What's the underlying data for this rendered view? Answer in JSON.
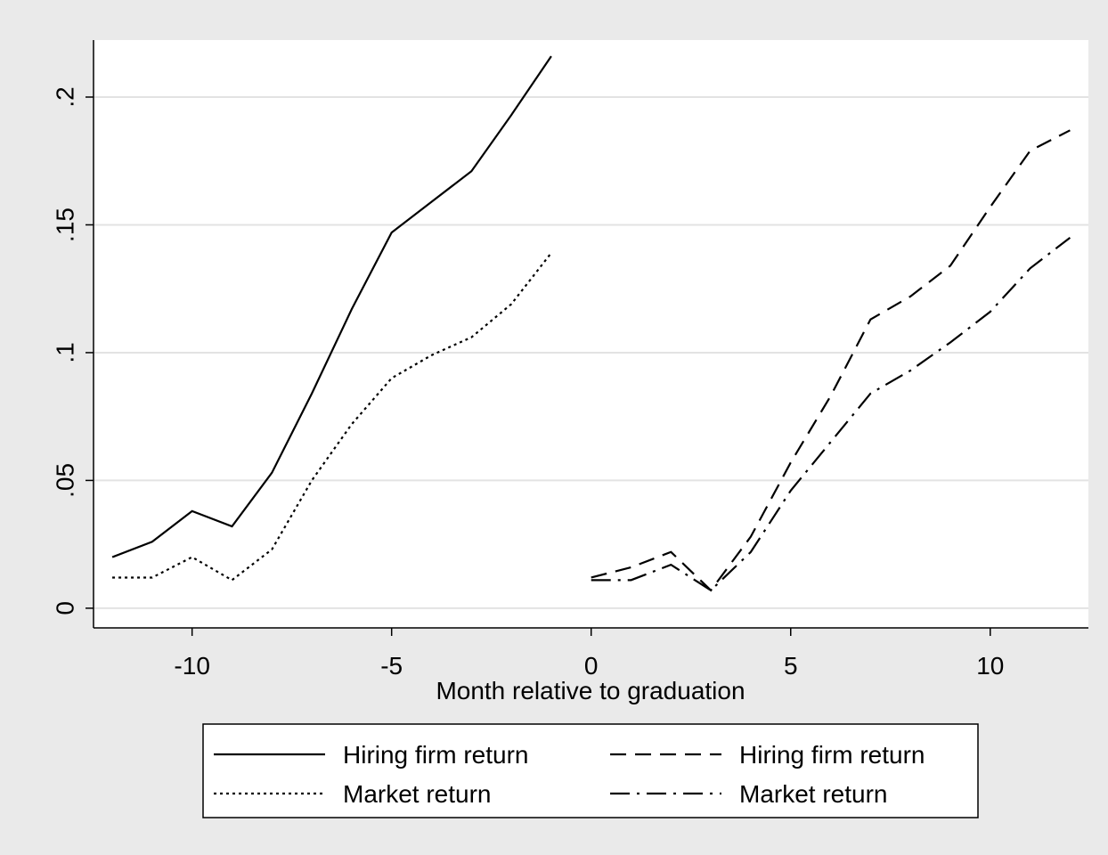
{
  "chart_data": {
    "type": "line",
    "xlabel": "Month relative to graduation",
    "xlim": [
      -12.47,
      12.46
    ],
    "ylim": [
      -0.0077,
      0.2223
    ],
    "xticks": [
      -10,
      -5,
      0,
      5,
      10
    ],
    "yticks": [
      0,
      {
        "value": 0.05,
        "label": ".05"
      },
      {
        "value": 0.1,
        "label": ".1"
      },
      {
        "value": 0.15,
        "label": ".15"
      },
      {
        "value": 0.2,
        "label": ".2"
      }
    ],
    "grid": true,
    "series": [
      {
        "name": "Hiring firm return",
        "color": "#000000",
        "dash": "solid",
        "x": [
          -12,
          -11,
          -10,
          -9,
          -8,
          -7,
          -6,
          -5,
          -4,
          -3,
          -2,
          -1
        ],
        "values": [
          0.02,
          0.026,
          0.038,
          0.032,
          0.053,
          0.084,
          0.117,
          0.147,
          0.159,
          0.171,
          0.193,
          0.216
        ]
      },
      {
        "name": "Market return",
        "color": "#000000",
        "dash": "dotted",
        "x": [
          -12,
          -11,
          -10,
          -9,
          -8,
          -7,
          -6,
          -5,
          -4,
          -3,
          -2,
          -1
        ],
        "values": [
          0.012,
          0.012,
          0.02,
          0.011,
          0.023,
          0.05,
          0.072,
          0.09,
          0.099,
          0.106,
          0.119,
          0.139
        ]
      },
      {
        "name": "Hiring firm return",
        "color": "#000000",
        "dash": "dashed",
        "x": [
          0,
          1,
          2,
          3,
          4,
          5,
          6,
          7,
          8,
          9,
          10,
          11,
          12
        ],
        "values": [
          0.012,
          0.016,
          0.022,
          0.007,
          0.028,
          0.057,
          0.083,
          0.113,
          0.122,
          0.134,
          0.157,
          0.179,
          0.187
        ]
      },
      {
        "name": "Market return",
        "color": "#000000",
        "dash": "dashdot",
        "x": [
          0,
          1,
          2,
          3,
          4,
          5,
          6,
          7,
          8,
          9,
          10,
          11,
          12
        ],
        "values": [
          0.011,
          0.011,
          0.017,
          0.007,
          0.022,
          0.046,
          0.065,
          0.084,
          0.093,
          0.104,
          0.116,
          0.133,
          0.145
        ]
      }
    ]
  }
}
